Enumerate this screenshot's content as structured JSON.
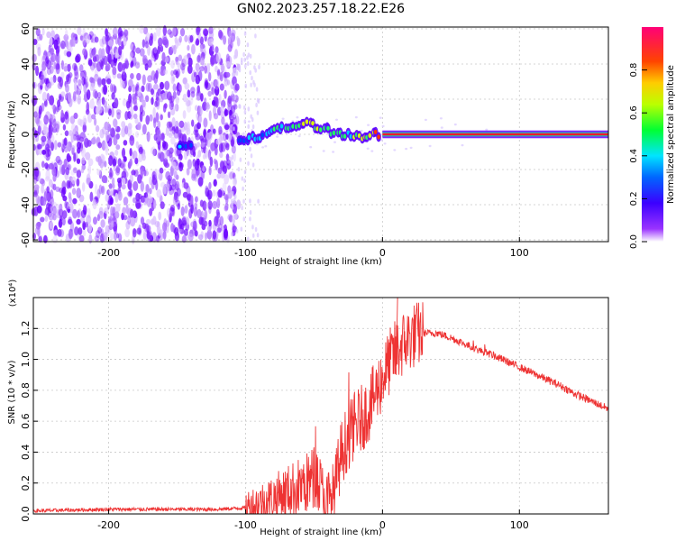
{
  "title": "GN02.2023.257.18.22.E26",
  "chart_data": [
    {
      "type": "heatmap",
      "xlabel": "Height of straight line (km)",
      "ylabel": "Frequency (Hz)",
      "xlim": [
        -255,
        165
      ],
      "ylim": [
        -61,
        61
      ],
      "xticks": [
        -200,
        -100,
        0,
        100
      ],
      "yticks": [
        -60,
        -40,
        -20,
        0,
        20,
        40,
        60
      ],
      "grid": true,
      "colorbar": {
        "label": "Normalized spectral amplitude",
        "range": [
          0,
          1
        ],
        "ticks": [
          "0.0",
          "0.2",
          "0.4",
          "0.6",
          "0.8"
        ],
        "colormap": [
          "#ffffff",
          "#7b00ff",
          "#0000ff",
          "#00ffff",
          "#00ff00",
          "#ffff00",
          "#ff0000",
          "#ff0066"
        ]
      },
      "noise_region": {
        "x_from": -255,
        "x_to": -105,
        "freq_from": -60,
        "freq_to": 60
      },
      "ridge": [
        {
          "x": -148,
          "f": -7,
          "amp": 0.35
        },
        {
          "x": -105,
          "f": -3,
          "amp": 0.3
        },
        {
          "x": -95,
          "f": -2,
          "amp": 0.45
        },
        {
          "x": -85,
          "f": 0,
          "amp": 0.5
        },
        {
          "x": -75,
          "f": 3,
          "amp": 0.55
        },
        {
          "x": -65,
          "f": 5,
          "amp": 0.6
        },
        {
          "x": -55,
          "f": 6,
          "amp": 0.75
        },
        {
          "x": -45,
          "f": 4,
          "amp": 0.6
        },
        {
          "x": -35,
          "f": 1,
          "amp": 0.55
        },
        {
          "x": -25,
          "f": 0,
          "amp": 0.6
        },
        {
          "x": -15,
          "f": -1,
          "amp": 0.65
        },
        {
          "x": -5,
          "f": 0,
          "amp": 0.8
        },
        {
          "x": 0,
          "f": 0,
          "amp": 0.95
        },
        {
          "x": 165,
          "f": 0,
          "amp": 0.95
        }
      ]
    },
    {
      "type": "line",
      "xlabel": "Height of straight line (km)",
      "ylabel": "SNR (10 * v/v)",
      "y_multiplier": "(x10⁴)",
      "xlim": [
        -255,
        165
      ],
      "ylim": [
        0,
        1.4
      ],
      "xticks": [
        -200,
        -100,
        0,
        100
      ],
      "yticks": [
        0.0,
        0.2,
        0.4,
        0.6,
        0.8,
        1.0,
        1.2
      ],
      "grid": true,
      "series": [
        {
          "color": "#ee3333",
          "x": [
            -255,
            -200,
            -150,
            -120,
            -100,
            -85,
            -70,
            -55,
            -48,
            -42,
            -36,
            -30,
            -25,
            -20,
            -15,
            -10,
            -5,
            0,
            5,
            10,
            15,
            20,
            25,
            30,
            40,
            50,
            60,
            70,
            80,
            90,
            100,
            110,
            120,
            130,
            140,
            150,
            165
          ],
          "y": [
            0.02,
            0.03,
            0.03,
            0.03,
            0.04,
            0.08,
            0.14,
            0.2,
            0.25,
            0.05,
            0.1,
            0.4,
            0.5,
            0.58,
            0.62,
            0.68,
            0.78,
            0.88,
            0.98,
            1.05,
            1.1,
            1.14,
            1.16,
            1.17,
            1.17,
            1.14,
            1.1,
            1.06,
            1.03,
            0.99,
            0.95,
            0.91,
            0.87,
            0.83,
            0.78,
            0.74,
            0.68
          ]
        }
      ]
    }
  ]
}
